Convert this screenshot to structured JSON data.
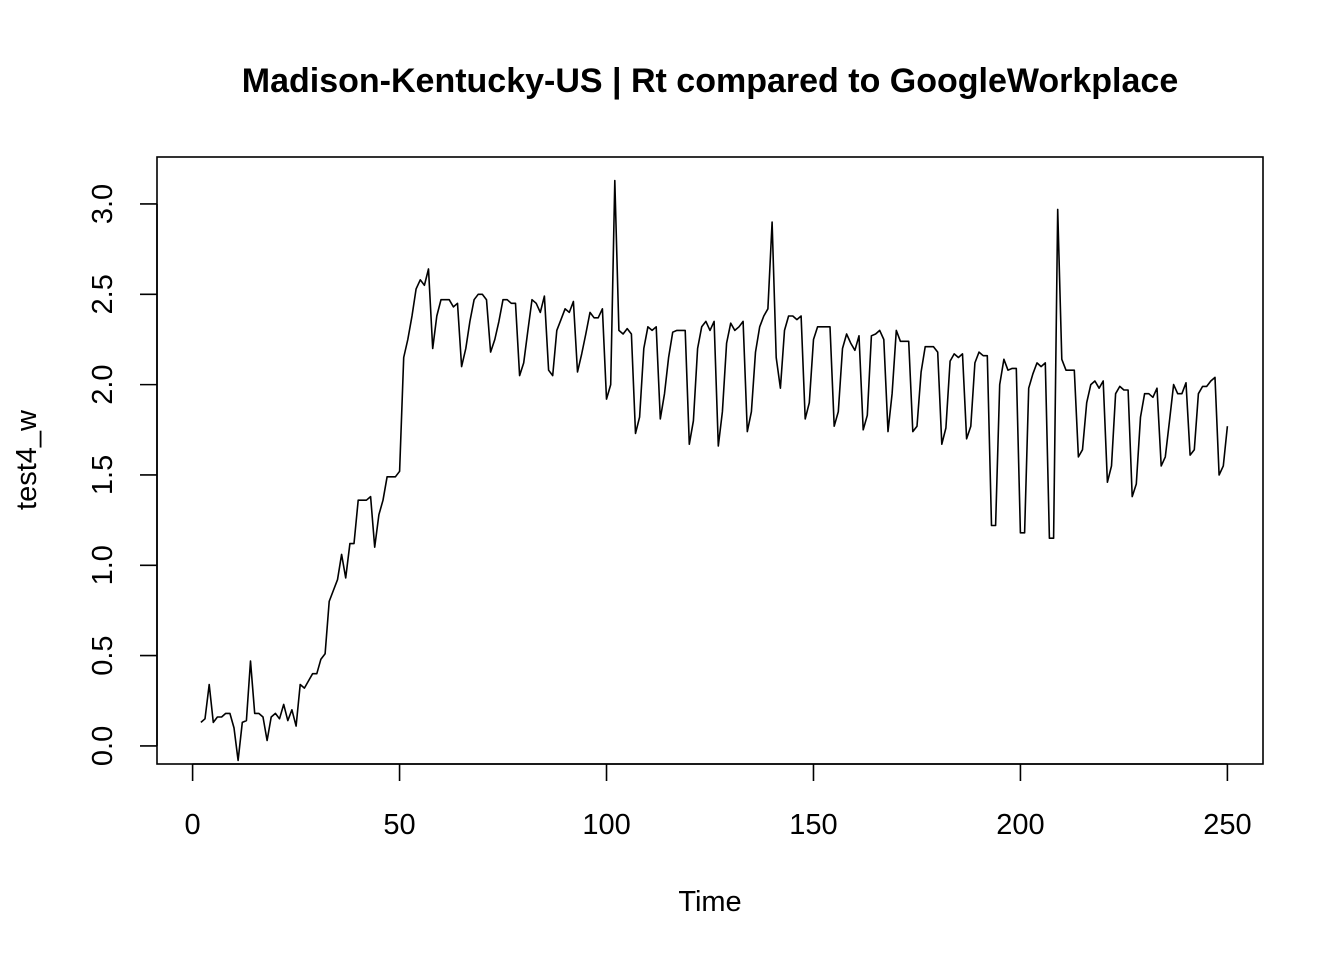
{
  "chart_data": {
    "type": "line",
    "title": "Madison-Kentucky-US | Rt compared to GoogleWorkplace",
    "xlabel": "Time",
    "ylabel": "test4_w",
    "xlim": [
      -8.6,
      258.6
    ],
    "ylim": [
      -0.1,
      3.26
    ],
    "x_ticks": [
      0,
      50,
      100,
      150,
      200,
      250
    ],
    "y_ticks": [
      0.0,
      0.5,
      1.0,
      1.5,
      2.0,
      2.5,
      3.0
    ],
    "x_tick_labels": [
      "0",
      "50",
      "100",
      "150",
      "200",
      "250"
    ],
    "y_tick_labels": [
      "0.0",
      "0.5",
      "1.0",
      "1.5",
      "2.0",
      "2.5",
      "3.0"
    ],
    "grid": false,
    "color": "#000000",
    "x_start": 2,
    "values": [
      0.13,
      0.15,
      0.34,
      0.13,
      0.16,
      0.16,
      0.18,
      0.18,
      0.1,
      -0.08,
      0.13,
      0.14,
      0.47,
      0.18,
      0.18,
      0.16,
      0.03,
      0.16,
      0.18,
      0.15,
      0.23,
      0.14,
      0.2,
      0.11,
      0.34,
      0.32,
      0.36,
      0.4,
      0.4,
      0.48,
      0.51,
      0.8,
      0.86,
      0.92,
      1.06,
      0.93,
      1.12,
      1.12,
      1.36,
      1.36,
      1.36,
      1.38,
      1.1,
      1.28,
      1.36,
      1.49,
      1.49,
      1.49,
      1.52,
      2.15,
      2.25,
      2.38,
      2.53,
      2.58,
      2.55,
      2.64,
      2.2,
      2.38,
      2.47,
      2.47,
      2.47,
      2.43,
      2.45,
      2.1,
      2.2,
      2.35,
      2.47,
      2.5,
      2.5,
      2.47,
      2.18,
      2.25,
      2.35,
      2.47,
      2.47,
      2.45,
      2.45,
      2.05,
      2.12,
      2.3,
      2.47,
      2.45,
      2.4,
      2.49,
      2.08,
      2.05,
      2.3,
      2.36,
      2.42,
      2.4,
      2.46,
      2.07,
      2.17,
      2.28,
      2.4,
      2.37,
      2.37,
      2.42,
      1.92,
      2.0,
      3.13,
      2.3,
      2.28,
      2.31,
      2.28,
      1.73,
      1.82,
      2.2,
      2.32,
      2.3,
      2.32,
      1.81,
      1.95,
      2.15,
      2.29,
      2.3,
      2.3,
      2.3,
      1.67,
      1.8,
      2.2,
      2.32,
      2.35,
      2.3,
      2.35,
      1.66,
      1.85,
      2.23,
      2.34,
      2.3,
      2.32,
      2.35,
      1.74,
      1.85,
      2.18,
      2.32,
      2.38,
      2.42,
      2.9,
      2.15,
      1.98,
      2.3,
      2.38,
      2.38,
      2.36,
      2.38,
      1.81,
      1.9,
      2.25,
      2.32,
      2.32,
      2.32,
      2.32,
      1.77,
      1.85,
      2.2,
      2.28,
      2.23,
      2.19,
      2.27,
      1.75,
      1.83,
      2.27,
      2.28,
      2.3,
      2.25,
      1.74,
      1.95,
      2.3,
      2.24,
      2.24,
      2.24,
      1.74,
      1.77,
      2.07,
      2.21,
      2.21,
      2.21,
      2.18,
      1.67,
      1.76,
      2.13,
      2.17,
      2.15,
      2.17,
      1.7,
      1.77,
      2.12,
      2.18,
      2.16,
      2.16,
      1.22,
      1.22,
      2.0,
      2.14,
      2.08,
      2.09,
      2.09,
      1.18,
      1.18,
      1.98,
      2.06,
      2.12,
      2.1,
      2.12,
      1.15,
      1.15,
      2.97,
      2.14,
      2.08,
      2.08,
      2.08,
      1.6,
      1.64,
      1.9,
      2.0,
      2.02,
      1.98,
      2.02,
      1.46,
      1.55,
      1.95,
      1.99,
      1.97,
      1.97,
      1.38,
      1.45,
      1.82,
      1.95,
      1.95,
      1.93,
      1.98,
      1.55,
      1.6,
      1.8,
      2.0,
      1.95,
      1.95,
      2.01,
      1.61,
      1.64,
      1.95,
      1.99,
      1.99,
      2.02,
      2.04,
      1.5,
      1.55,
      1.77
    ]
  }
}
